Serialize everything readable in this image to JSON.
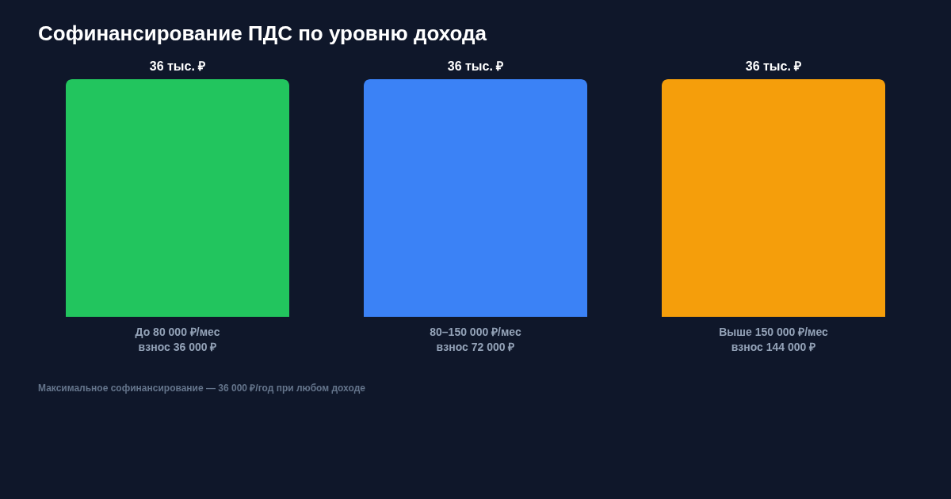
{
  "chart_data": {
    "type": "bar",
    "title": "Софинансирование ПДС по уровню дохода",
    "categories": [
      "До 80 000 ₽/мес\nвзнос 36 000 ₽",
      "80–150 000 ₽/мес\nвзнос 72 000 ₽",
      "Выше 150 000 ₽/мес\nвзнос 144 000 ₽"
    ],
    "values": [
      36,
      36,
      36
    ],
    "value_labels": [
      "36 тыс. ₽",
      "36 тыс. ₽",
      "36 тыс. ₽"
    ],
    "colors": [
      "#22c55e",
      "#3b82f6",
      "#f59e0b"
    ],
    "ylim": [
      0,
      36
    ],
    "annotations": [
      "Максимальное софинансирование — 36 000 ₽/год при любом доходе"
    ],
    "grid": false
  }
}
